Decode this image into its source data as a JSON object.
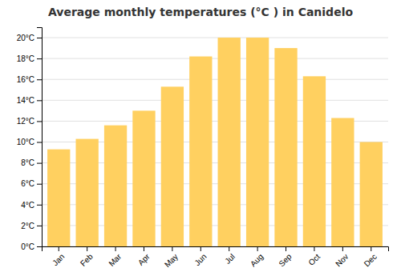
{
  "chart_data": {
    "type": "bar",
    "title": "Average monthly temperatures (°C ) in Canidelo",
    "categories": [
      "Jan",
      "Feb",
      "Mar",
      "Apr",
      "May",
      "Jun",
      "Jul",
      "Aug",
      "Sep",
      "Oct",
      "Nov",
      "Dec"
    ],
    "values": [
      9.3,
      10.3,
      11.6,
      13.0,
      15.3,
      18.2,
      20.0,
      20.0,
      19.0,
      16.3,
      12.3,
      10.0
    ],
    "color": "#FFD060",
    "ylim": [
      0,
      21
    ],
    "yticks": [
      {
        "value": 0,
        "label": "0°C"
      },
      {
        "value": 2,
        "label": "2°C"
      },
      {
        "value": 4,
        "label": "4°C"
      },
      {
        "value": 6,
        "label": "6°C"
      },
      {
        "value": 8,
        "label": "8°C"
      },
      {
        "value": 10,
        "label": "10°C"
      },
      {
        "value": 12,
        "label": "12°C"
      },
      {
        "value": 14,
        "label": "14°C"
      },
      {
        "value": 16,
        "label": "16°C"
      },
      {
        "value": 18,
        "label": "18°C"
      },
      {
        "value": 20,
        "label": "20°C"
      }
    ],
    "grid": true
  }
}
